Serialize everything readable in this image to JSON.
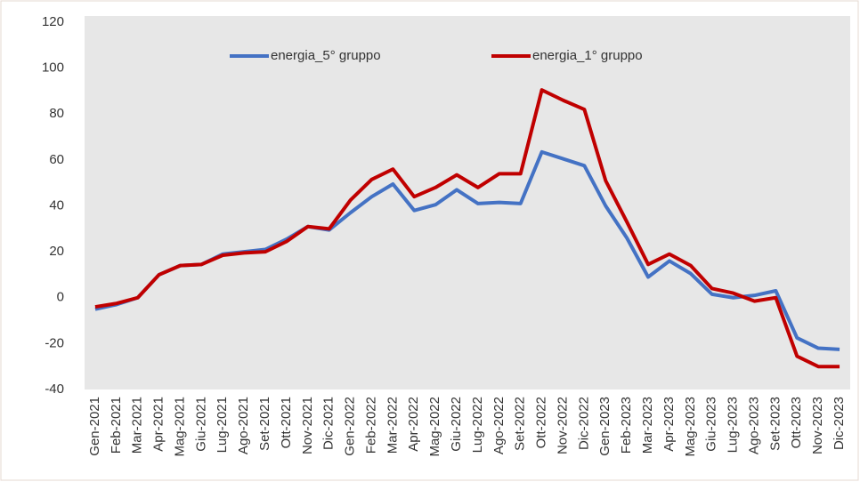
{
  "chart_data": {
    "type": "line",
    "categories": [
      "Gen-2021",
      "Feb-2021",
      "Mar-2021",
      "Apr-2021",
      "Mag-2021",
      "Giu-2021",
      "Lug-2021",
      "Ago-2021",
      "Set-2021",
      "Ott-2021",
      "Nov-2021",
      "Dic-2021",
      "Gen-2022",
      "Feb-2022",
      "Mar-2022",
      "Apr-2022",
      "Mag-2022",
      "Giu-2022",
      "Lug-2022",
      "Ago-2022",
      "Set-2022",
      "Ott-2022",
      "Nov-2022",
      "Dic-2022",
      "Gen-2023",
      "Feb-2023",
      "Mar-2023",
      "Apr-2023",
      "Mag-2023",
      "Giu-2023",
      "Lug-2023",
      "Ago-2023",
      "Set-2023",
      "Ott-2023",
      "Nov-2023",
      "Dic-2023"
    ],
    "series": [
      {
        "name": "energia_5° gruppo",
        "color": "#4472c4",
        "values": [
          -5,
          -3,
          0,
          10,
          14,
          14.5,
          19,
          20,
          21,
          25.5,
          31,
          29.5,
          37,
          44,
          49.5,
          38,
          40.5,
          47,
          41,
          41.5,
          41,
          63.5,
          60.5,
          57.5,
          40,
          26,
          9,
          16,
          10.5,
          1.5,
          0,
          1,
          3,
          -17.5,
          -22,
          -22.5
        ]
      },
      {
        "name": "energia_1° gruppo",
        "color": "#c00000",
        "values": [
          -4,
          -2.5,
          0,
          10,
          14,
          14.5,
          18.5,
          19.5,
          20,
          24.5,
          31,
          30,
          42.5,
          51.5,
          56,
          44,
          48,
          53.5,
          48,
          54,
          54,
          90.5,
          86,
          82,
          51,
          33,
          14.5,
          19,
          14,
          4,
          2,
          -1.5,
          0,
          -25.5,
          -30,
          -30
        ]
      }
    ],
    "ylim": [
      -40,
      120
    ],
    "yticks": [
      -40,
      -20,
      0,
      20,
      40,
      60,
      80,
      100,
      120
    ],
    "grid": false
  }
}
